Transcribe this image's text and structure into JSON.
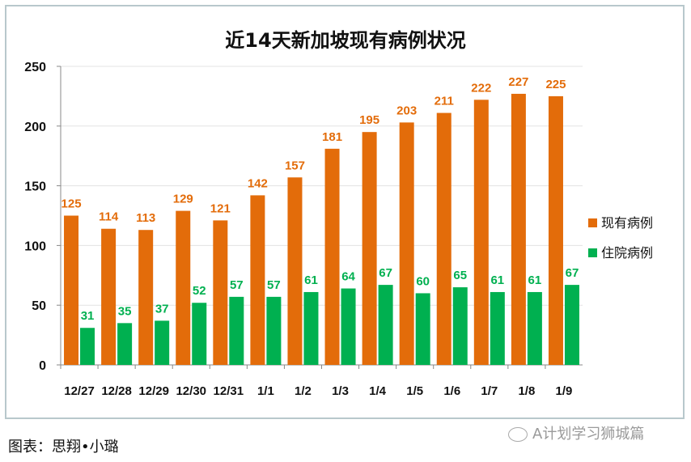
{
  "chart_data": {
    "type": "bar",
    "title": "近14天新加坡现有病例状况",
    "categories": [
      "12/27",
      "12/28",
      "12/29",
      "12/30",
      "12/31",
      "1/1",
      "1/2",
      "1/3",
      "1/4",
      "1/5",
      "1/6",
      "1/7",
      "1/8",
      "1/9"
    ],
    "series": [
      {
        "name": "现有病例",
        "color": "#e36c0a",
        "values": [
          125,
          114,
          113,
          129,
          121,
          142,
          157,
          181,
          195,
          203,
          211,
          222,
          227,
          225
        ]
      },
      {
        "name": "住院病例",
        "color": "#00b050",
        "values": [
          31,
          35,
          37,
          52,
          57,
          57,
          61,
          64,
          67,
          60,
          65,
          61,
          61,
          67
        ]
      }
    ],
    "ylim": [
      0,
      250
    ],
    "yticks": [
      0,
      50,
      100,
      150,
      200,
      250
    ],
    "grid": true,
    "legend": "right",
    "xlabel": "",
    "ylabel": ""
  },
  "caption": "图表：思翔•小璐",
  "watermark": "A计划学习狮城篇"
}
